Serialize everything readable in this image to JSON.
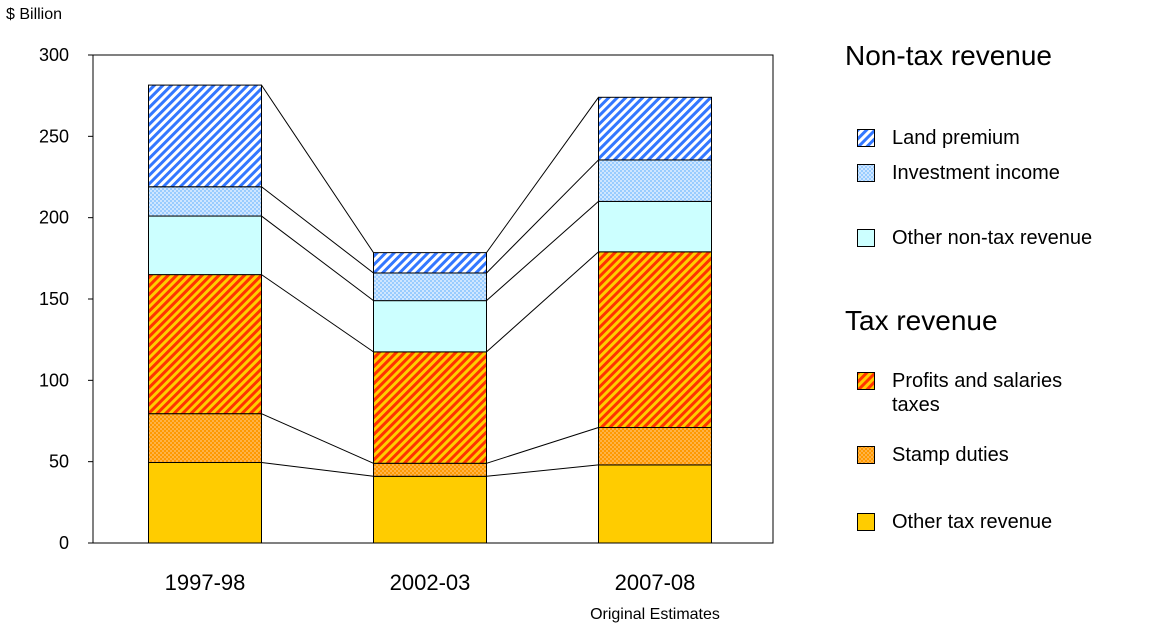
{
  "chart_data": {
    "type": "bar",
    "stacked": true,
    "ylabel": "$ Billion",
    "ylim": [
      0,
      300
    ],
    "yticks": [
      0,
      50,
      100,
      150,
      200,
      250,
      300
    ],
    "categories": [
      "1997-98",
      "2002-03",
      "2007-08"
    ],
    "category_sublabels": [
      "",
      "",
      "Original Estimates"
    ],
    "groups": [
      {
        "title": "Non-tax revenue"
      },
      {
        "title": "Tax revenue"
      }
    ],
    "series": [
      {
        "name": "Other tax revenue",
        "values": [
          49.5,
          41,
          48
        ],
        "color": "#ffcc00",
        "pattern": "solid"
      },
      {
        "name": "Stamp duties",
        "values": [
          30,
          8,
          23
        ],
        "color": "#ff9900",
        "pattern": "dots"
      },
      {
        "name": "Profits and salaries taxes",
        "values": [
          85.5,
          68.5,
          108
        ],
        "color": "#ff6600",
        "pattern": "stripes-orange"
      },
      {
        "name": "Other non-tax revenue",
        "values": [
          36,
          31.5,
          31
        ],
        "color": "#ccffff",
        "pattern": "solid"
      },
      {
        "name": "Investment income",
        "values": [
          18,
          17,
          25.5
        ],
        "color": "#99ccff",
        "pattern": "dots-blue"
      },
      {
        "name": "Land premium",
        "values": [
          62.5,
          12.5,
          38.5
        ],
        "color": "#3366ff",
        "pattern": "stripes-blue"
      }
    ],
    "legend": {
      "non_tax": [
        "Land premium",
        "Investment income",
        "Other non-tax revenue"
      ],
      "tax": [
        "Profits and salaries\ntaxes",
        "Stamp duties",
        "Other tax revenue"
      ]
    },
    "grid": false,
    "legend_placement": "right"
  }
}
